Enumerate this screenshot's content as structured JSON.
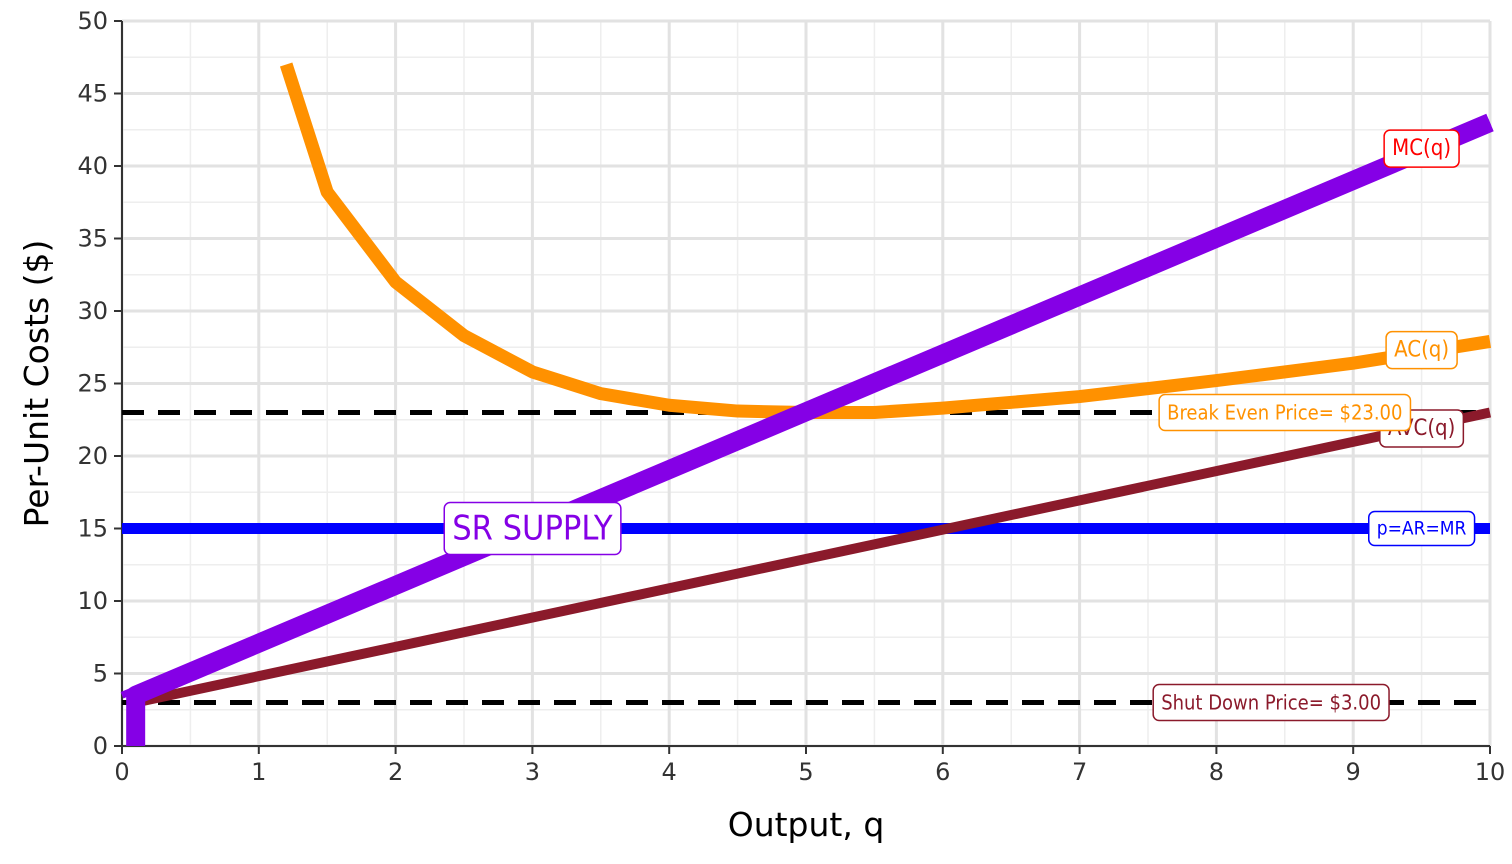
{
  "chart_data": {
    "type": "line",
    "title": "",
    "xlabel": "Output, q",
    "ylabel": "Per-Unit Costs ($)",
    "xlim": [
      0,
      10
    ],
    "ylim": [
      0,
      50
    ],
    "x_ticks": [
      0,
      1,
      2,
      3,
      4,
      5,
      6,
      7,
      8,
      9,
      10
    ],
    "y_ticks": [
      0,
      5,
      10,
      15,
      20,
      25,
      30,
      35,
      40,
      45,
      50
    ],
    "grid": true,
    "legend": "none",
    "series": [
      {
        "name": "AC(q)",
        "color": "#FF9100",
        "x": [
          1.2,
          1.5,
          2,
          2.5,
          3,
          3.5,
          4,
          4.5,
          5,
          5.5,
          6,
          7,
          8,
          9,
          10
        ],
        "values": [
          47.0,
          38.2,
          32.0,
          28.3,
          25.8,
          24.3,
          23.5,
          23.1,
          23.0,
          23.0,
          23.3,
          24.1,
          25.2,
          26.4,
          27.9
        ]
      },
      {
        "name": "AVC(q)",
        "color": "#8B1A2B",
        "x": [
          0.1,
          10
        ],
        "values": [
          3.0,
          23.0
        ]
      },
      {
        "name": "MC(q)",
        "color": "#8500E6",
        "x": [
          0,
          10
        ],
        "values": [
          3.5,
          43.0
        ]
      },
      {
        "name": "p=AR=MR",
        "color": "#0000FF",
        "x": [
          0,
          10
        ],
        "values": [
          15,
          15
        ]
      },
      {
        "name": "SR SUPPLY",
        "color": "#8500E6",
        "x": [
          0.1,
          0.1,
          10
        ],
        "values": [
          0,
          3.5,
          43.0
        ]
      }
    ],
    "reference_lines": [
      {
        "label": "Break Even Price= $23.00",
        "y": 23,
        "color": "#FF9100"
      },
      {
        "label": "Shut Down Price= $3.00",
        "y": 3,
        "color": "#8B1A2B"
      }
    ],
    "annotations": [
      {
        "text": "MC(q)",
        "x": 9.5,
        "y": 41.2,
        "color": "#FF0000"
      },
      {
        "text": "AC(q)",
        "x": 9.5,
        "y": 27.3,
        "color": "#FF9100"
      },
      {
        "text": "AVC(q)",
        "x": 9.5,
        "y": 21.9,
        "color": "#8B1A2B"
      },
      {
        "text": "p=AR=MR",
        "x": 9.5,
        "y": 15,
        "color": "#0000FF"
      },
      {
        "text": "SR SUPPLY",
        "x": 3.0,
        "y": 15,
        "color": "#8500E6"
      }
    ]
  }
}
